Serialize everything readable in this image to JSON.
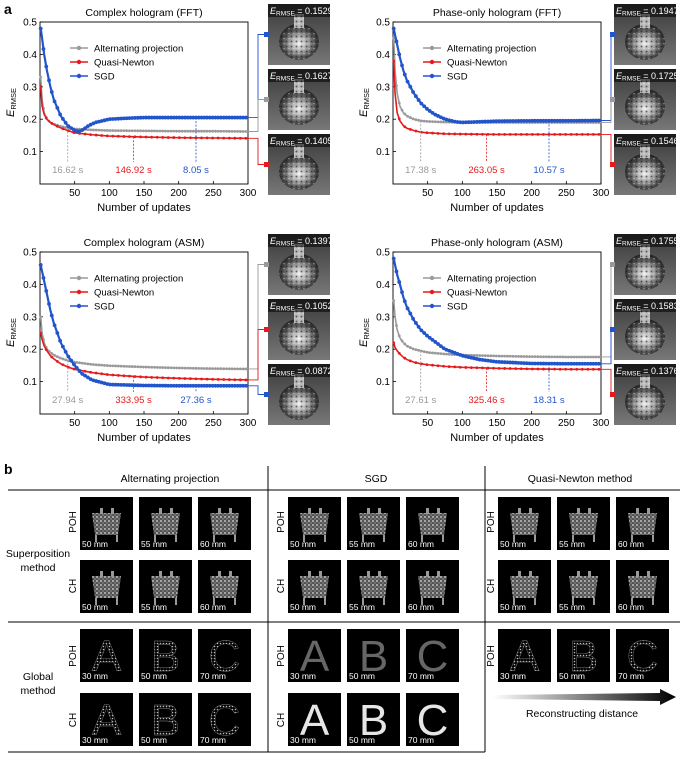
{
  "panel_a_label": "a",
  "panel_b_label": "b",
  "charts": [
    {
      "title": "Complex hologram (FFT)",
      "ylabel": "E",
      "ylabel_sub": "RMSE",
      "xlabel": "Number of updates",
      "xticks": [
        "50",
        "100",
        "150",
        "200",
        "250",
        "300"
      ],
      "yticks": [
        "0.1",
        "0.2",
        "0.3",
        "0.4",
        "0.5"
      ],
      "legend": [
        "Alternating projection",
        "Quasi-Newton",
        "SGD"
      ],
      "times": [
        "16.62 s",
        "146.92 s",
        "8.05 s"
      ],
      "thumbs": [
        {
          "label": "E",
          "sub": "RMSE",
          "value": " = 0.1529"
        },
        {
          "label": "E",
          "sub": "RMSE",
          "value": " = 0.1627"
        },
        {
          "label": "E",
          "sub": "RMSE",
          "value": " = 0.1405"
        }
      ]
    },
    {
      "title": "Phase-only hologram (FFT)",
      "ylabel": "E",
      "ylabel_sub": "RMSE",
      "xlabel": "Number of updates",
      "xticks": [
        "50",
        "100",
        "150",
        "200",
        "250",
        "300"
      ],
      "yticks": [
        "0.1",
        "0.2",
        "0.3",
        "0.4",
        "0.5"
      ],
      "legend": [
        "Alternating projection",
        "Quasi-Newton",
        "SGD"
      ],
      "times": [
        "17.38 s",
        "263.05 s",
        "10.57 s"
      ],
      "thumbs": [
        {
          "label": "E",
          "sub": "RMSE",
          "value": " = 0.1947"
        },
        {
          "label": "E",
          "sub": "RMSE",
          "value": " = 0.1725"
        },
        {
          "label": "E",
          "sub": "RMSE",
          "value": " = 0.1546"
        }
      ]
    },
    {
      "title": "Complex hologram (ASM)",
      "ylabel": "E",
      "ylabel_sub": "RMSE",
      "xlabel": "Number of updates",
      "xticks": [
        "50",
        "100",
        "150",
        "200",
        "250",
        "300"
      ],
      "yticks": [
        "0.1",
        "0.2",
        "0.3",
        "0.4",
        "0.5"
      ],
      "legend": [
        "Alternating projection",
        "Quasi-Newton",
        "SGD"
      ],
      "times": [
        "27.94 s",
        "333.95 s",
        "27.36 s"
      ],
      "thumbs": [
        {
          "label": "E",
          "sub": "RMSE",
          "value": " = 0.1397"
        },
        {
          "label": "E",
          "sub": "RMSE",
          "value": " = 0.1052"
        },
        {
          "label": "E",
          "sub": "RMSE",
          "value": " = 0.0872"
        }
      ]
    },
    {
      "title": "Phase-only hologram (ASM)",
      "ylabel": "E",
      "ylabel_sub": "RMSE",
      "xlabel": "Number of updates",
      "xticks": [
        "50",
        "100",
        "150",
        "200",
        "250",
        "300"
      ],
      "yticks": [
        "0.1",
        "0.2",
        "0.3",
        "0.4",
        "0.5"
      ],
      "legend": [
        "Alternating projection",
        "Quasi-Newton",
        "SGD"
      ],
      "times": [
        "27.61 s",
        "325.46 s",
        "18.31 s"
      ],
      "thumbs": [
        {
          "label": "E",
          "sub": "RMSE",
          "value": " = 0.1755"
        },
        {
          "label": "E",
          "sub": "RMSE",
          "value": " = 0.1583"
        },
        {
          "label": "E",
          "sub": "RMSE",
          "value": " = 0.1376"
        }
      ]
    }
  ],
  "colors": {
    "alternating": "#9a9a9a",
    "quasi_newton": "#e41a1c",
    "sgd": "#2255cc"
  },
  "chart_data": [
    {
      "type": "line",
      "title": "Complex hologram (FFT)",
      "xlabel": "Number of updates",
      "ylabel": "E_RMSE",
      "xlim": [
        0,
        300
      ],
      "ylim": [
        0,
        0.5
      ],
      "series": [
        {
          "name": "Alternating projection",
          "x": [
            1,
            3,
            6,
            10,
            15,
            20,
            30,
            40,
            50,
            75,
            100,
            150,
            200,
            250,
            300
          ],
          "values": [
            0.33,
            0.26,
            0.22,
            0.2,
            0.19,
            0.185,
            0.178,
            0.173,
            0.17,
            0.167,
            0.165,
            0.164,
            0.163,
            0.163,
            0.162
          ]
        },
        {
          "name": "Quasi-Newton",
          "x": [
            1,
            3,
            6,
            10,
            15,
            20,
            30,
            40,
            50,
            75,
            100,
            150,
            200,
            250,
            300
          ],
          "values": [
            0.3,
            0.24,
            0.215,
            0.2,
            0.19,
            0.183,
            0.173,
            0.165,
            0.158,
            0.152,
            0.148,
            0.145,
            0.143,
            0.142,
            0.141
          ]
        },
        {
          "name": "SGD",
          "x": [
            1,
            3,
            6,
            10,
            15,
            20,
            30,
            40,
            50,
            55,
            60,
            70,
            80,
            100,
            125,
            150,
            200,
            250,
            300
          ],
          "values": [
            0.48,
            0.45,
            0.4,
            0.35,
            0.3,
            0.26,
            0.21,
            0.18,
            0.165,
            0.162,
            0.165,
            0.18,
            0.19,
            0.2,
            0.203,
            0.205,
            0.205,
            0.205,
            0.205
          ]
        }
      ],
      "markers": [
        {
          "x": 40,
          "label": "16.62 s"
        },
        {
          "x": 135,
          "label": "146.92 s"
        },
        {
          "x": 225,
          "label": "8.05 s"
        }
      ]
    },
    {
      "type": "line",
      "title": "Phase-only hologram (FFT)",
      "xlabel": "Number of updates",
      "ylabel": "E_RMSE",
      "xlim": [
        0,
        300
      ],
      "ylim": [
        0,
        0.5
      ],
      "series": [
        {
          "name": "Alternating projection",
          "x": [
            1,
            3,
            6,
            10,
            15,
            20,
            30,
            40,
            50,
            75,
            100,
            150,
            200,
            250,
            300
          ],
          "values": [
            0.45,
            0.35,
            0.28,
            0.24,
            0.22,
            0.21,
            0.2,
            0.195,
            0.193,
            0.191,
            0.19,
            0.19,
            0.19,
            0.19,
            0.19
          ]
        },
        {
          "name": "Quasi-Newton",
          "x": [
            1,
            3,
            6,
            10,
            15,
            20,
            30,
            40,
            50,
            75,
            100,
            150,
            200,
            250,
            300
          ],
          "values": [
            0.38,
            0.28,
            0.22,
            0.195,
            0.18,
            0.172,
            0.165,
            0.16,
            0.158,
            0.155,
            0.154,
            0.153,
            0.153,
            0.153,
            0.153
          ]
        },
        {
          "name": "SGD",
          "x": [
            1,
            3,
            6,
            10,
            15,
            20,
            30,
            40,
            50,
            60,
            75,
            90,
            100,
            125,
            150,
            200,
            250,
            300
          ],
          "values": [
            0.48,
            0.46,
            0.43,
            0.39,
            0.35,
            0.32,
            0.28,
            0.25,
            0.23,
            0.215,
            0.2,
            0.192,
            0.19,
            0.192,
            0.194,
            0.195,
            0.195,
            0.196
          ]
        }
      ],
      "markers": [
        {
          "x": 40,
          "label": "17.38 s"
        },
        {
          "x": 135,
          "label": "263.05 s"
        },
        {
          "x": 225,
          "label": "10.57 s"
        }
      ]
    },
    {
      "type": "line",
      "title": "Complex hologram (ASM)",
      "xlabel": "Number of updates",
      "ylabel": "E_RMSE",
      "xlim": [
        0,
        300
      ],
      "ylim": [
        0,
        0.5
      ],
      "series": [
        {
          "name": "Alternating projection",
          "x": [
            1,
            3,
            6,
            10,
            15,
            20,
            30,
            40,
            50,
            75,
            100,
            150,
            200,
            250,
            300
          ],
          "values": [
            0.3,
            0.25,
            0.22,
            0.2,
            0.19,
            0.182,
            0.172,
            0.165,
            0.16,
            0.153,
            0.149,
            0.145,
            0.142,
            0.14,
            0.139
          ]
        },
        {
          "name": "Quasi-Newton",
          "x": [
            1,
            3,
            6,
            10,
            15,
            20,
            30,
            40,
            50,
            75,
            100,
            150,
            200,
            250,
            300
          ],
          "values": [
            0.25,
            0.23,
            0.21,
            0.195,
            0.18,
            0.17,
            0.155,
            0.145,
            0.138,
            0.128,
            0.121,
            0.114,
            0.11,
            0.107,
            0.105
          ]
        },
        {
          "name": "SGD",
          "x": [
            1,
            3,
            6,
            10,
            15,
            20,
            30,
            40,
            50,
            60,
            75,
            100,
            150,
            200,
            250,
            300
          ],
          "values": [
            0.46,
            0.44,
            0.41,
            0.37,
            0.32,
            0.28,
            0.22,
            0.18,
            0.15,
            0.125,
            0.105,
            0.091,
            0.088,
            0.087,
            0.087,
            0.087
          ]
        }
      ],
      "markers": [
        {
          "x": 40,
          "label": "27.94 s"
        },
        {
          "x": 135,
          "label": "333.95 s"
        },
        {
          "x": 225,
          "label": "27.36 s"
        }
      ]
    },
    {
      "type": "line",
      "title": "Phase-only hologram (ASM)",
      "xlabel": "Number of updates",
      "ylabel": "E_RMSE",
      "xlim": [
        0,
        300
      ],
      "ylim": [
        0,
        0.5
      ],
      "series": [
        {
          "name": "Alternating projection",
          "x": [
            1,
            3,
            6,
            10,
            15,
            20,
            30,
            40,
            50,
            75,
            100,
            150,
            200,
            250,
            300
          ],
          "values": [
            0.35,
            0.3,
            0.26,
            0.235,
            0.22,
            0.21,
            0.2,
            0.195,
            0.19,
            0.185,
            0.182,
            0.179,
            0.177,
            0.176,
            0.176
          ]
        },
        {
          "name": "Quasi-Newton",
          "x": [
            1,
            3,
            6,
            10,
            15,
            20,
            30,
            40,
            50,
            75,
            100,
            150,
            200,
            250,
            300
          ],
          "values": [
            0.22,
            0.205,
            0.195,
            0.185,
            0.175,
            0.168,
            0.16,
            0.155,
            0.152,
            0.147,
            0.144,
            0.141,
            0.139,
            0.138,
            0.138
          ]
        },
        {
          "name": "SGD",
          "x": [
            1,
            3,
            6,
            10,
            15,
            20,
            30,
            40,
            50,
            75,
            100,
            125,
            150,
            200,
            250,
            300
          ],
          "values": [
            0.48,
            0.46,
            0.43,
            0.4,
            0.36,
            0.33,
            0.29,
            0.26,
            0.24,
            0.2,
            0.18,
            0.168,
            0.161,
            0.156,
            0.155,
            0.155
          ]
        }
      ],
      "markers": [
        {
          "x": 40,
          "label": "27.61 s"
        },
        {
          "x": 135,
          "label": "325.46 s"
        },
        {
          "x": 225,
          "label": "18.31 s"
        }
      ]
    }
  ],
  "grid": {
    "col_headers": [
      "Alternating projection",
      "SGD",
      "Quasi-Newton method"
    ],
    "row_headers": [
      [
        "Superposition",
        "method"
      ],
      [
        "Global",
        "method"
      ]
    ],
    "poh": "POH",
    "ch": "CH",
    "sup_dists": [
      "50 mm",
      "55 mm",
      "60 mm"
    ],
    "glob_dists": [
      "30 mm",
      "50 mm",
      "70 mm"
    ],
    "letters": [
      "A",
      "B",
      "C"
    ],
    "reconstructing_distance": "Reconstructing distance"
  }
}
